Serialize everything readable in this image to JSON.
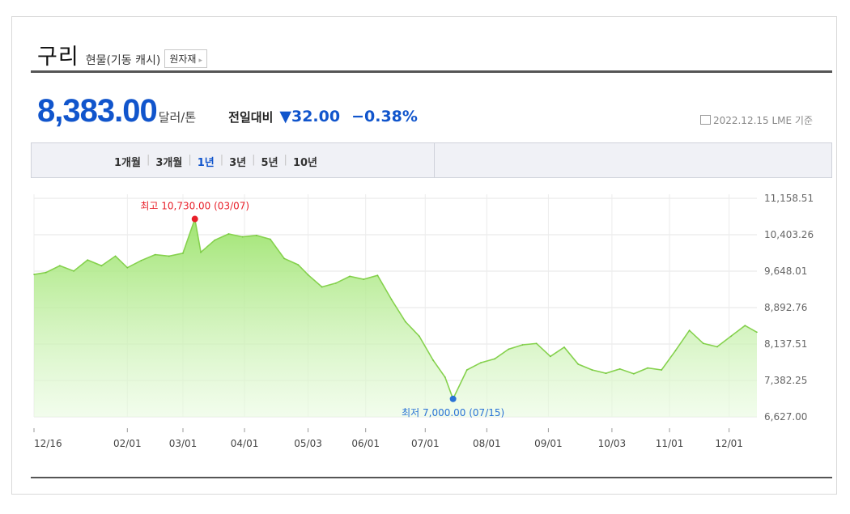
{
  "header": {
    "title": "구리",
    "subtitle": "현물(기동 캐시)",
    "raw_button_label": "원자재",
    "raw_button_arrow": "▸"
  },
  "price": {
    "value": "8,383.00",
    "unit": "달러/톤",
    "change_label": "전일대비",
    "change_value": "▼32.00",
    "change_pct": "−0.38%",
    "date_note": "2022.12.15 LME 기준",
    "color": "#1155cc"
  },
  "periods": [
    {
      "label": "1개월",
      "active": false
    },
    {
      "label": "3개월",
      "active": false
    },
    {
      "label": "1년",
      "active": true
    },
    {
      "label": "3년",
      "active": false
    },
    {
      "label": "5년",
      "active": false
    },
    {
      "label": "10년",
      "active": false
    }
  ],
  "chart_data": {
    "type": "area",
    "y_ticks": [
      "11,158.51",
      "10,403.26",
      "9,648.01",
      "8,892.76",
      "8,137.51",
      "7,382.25",
      "6,627.00"
    ],
    "ylim": [
      6627.0,
      11158.51
    ],
    "x_ticks": [
      "12/16",
      "02/01",
      "03/01",
      "04/01",
      "05/03",
      "06/01",
      "07/01",
      "08/01",
      "09/01",
      "10/03",
      "11/01",
      "12/01"
    ],
    "x_tick_dates": [
      "2021-12-16",
      "2022-02-01",
      "2022-03-01",
      "2022-04-01",
      "2022-05-03",
      "2022-06-01",
      "2022-07-01",
      "2022-08-01",
      "2022-09-01",
      "2022-10-03",
      "2022-11-01",
      "2022-12-01"
    ],
    "x": [
      "2021-12-16",
      "2021-12-22",
      "2021-12-29",
      "2022-01-05",
      "2022-01-12",
      "2022-01-19",
      "2022-01-26",
      "2022-02-01",
      "2022-02-08",
      "2022-02-15",
      "2022-02-22",
      "2022-03-01",
      "2022-03-07",
      "2022-03-10",
      "2022-03-17",
      "2022-03-24",
      "2022-03-31",
      "2022-04-07",
      "2022-04-14",
      "2022-04-21",
      "2022-04-28",
      "2022-05-03",
      "2022-05-10",
      "2022-05-17",
      "2022-05-24",
      "2022-05-31",
      "2022-06-07",
      "2022-06-14",
      "2022-06-21",
      "2022-06-28",
      "2022-07-05",
      "2022-07-11",
      "2022-07-15",
      "2022-07-22",
      "2022-07-29",
      "2022-08-05",
      "2022-08-12",
      "2022-08-19",
      "2022-08-26",
      "2022-09-02",
      "2022-09-09",
      "2022-09-16",
      "2022-09-23",
      "2022-09-30",
      "2022-10-07",
      "2022-10-14",
      "2022-10-21",
      "2022-10-28",
      "2022-11-04",
      "2022-11-11",
      "2022-11-18",
      "2022-11-25",
      "2022-12-02",
      "2022-12-09",
      "2022-12-15"
    ],
    "values": [
      9580,
      9620,
      9760,
      9650,
      9880,
      9760,
      9960,
      9720,
      9870,
      9990,
      9960,
      10020,
      10730,
      10040,
      10290,
      10420,
      10360,
      10390,
      10310,
      9910,
      9780,
      9570,
      9320,
      9400,
      9540,
      9480,
      9560,
      9060,
      8600,
      8300,
      7800,
      7450,
      7000,
      7600,
      7750,
      7830,
      8030,
      8120,
      8150,
      7880,
      8070,
      7720,
      7600,
      7530,
      7620,
      7520,
      7640,
      7600,
      8000,
      8420,
      8150,
      8080,
      8300,
      8520,
      8383
    ],
    "series": [
      {
        "values_ref": "values",
        "color": "#86d24e"
      }
    ],
    "annotations": {
      "high": {
        "label": "최고 10,730.00 (03/07)",
        "date": "2022-03-07",
        "value": 10730.0,
        "color": "#e8202a"
      },
      "low": {
        "label": "최저 7,000.00 (07/15)",
        "date": "2022-07-15",
        "value": 7000.0,
        "color": "#2a73d6"
      }
    },
    "grid": true,
    "y_axis_side": "right"
  }
}
